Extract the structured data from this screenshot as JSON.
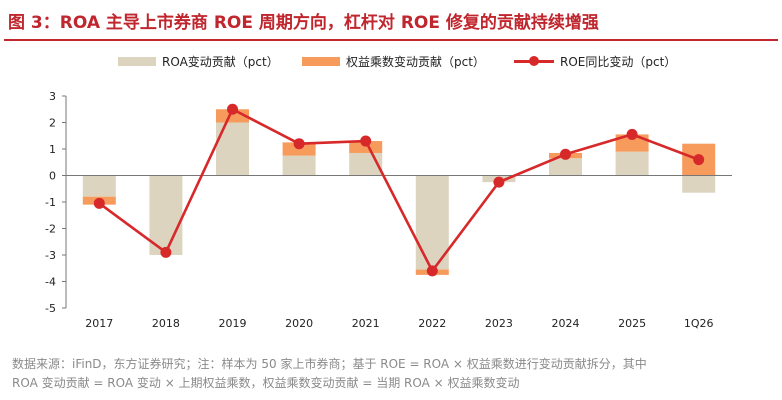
{
  "title": "图 3：ROA 主导上市券商 ROE 周期方向，杠杆对 ROE 修复的贡献持续增强",
  "legend": [
    {
      "label": "ROA变动贡献（pct）",
      "color": "#ddd4c0",
      "kind": "bar"
    },
    {
      "label": "权益乘数变动贡献（pct）",
      "color": "#f79b5c",
      "kind": "bar"
    },
    {
      "label": "ROE同比变动（pct）",
      "color": "#d7282a",
      "kind": "line"
    }
  ],
  "source_lines": [
    "数据来源：iFinD，东方证券研究；注：样本为 50 家上市券商；基于 ROE = ROA × 权益乘数进行变动贡献拆分，其中",
    "ROA 变动贡献 = ROA 变动 × 上期权益乘数，权益乘数变动贡献 = 当期 ROA × 权益乘数变动"
  ],
  "chart_data": {
    "type": "bar",
    "categories": [
      "2017",
      "2018",
      "2019",
      "2020",
      "2021",
      "2022",
      "2023",
      "2024",
      "2025",
      "1Q26"
    ],
    "series": [
      {
        "name": "ROA变动贡献（pct）",
        "type": "bar",
        "stack": true,
        "color": "#ddd4c0",
        "values": [
          -0.8,
          -3.0,
          2.0,
          0.75,
          0.85,
          -3.55,
          -0.25,
          0.65,
          0.9,
          -0.65
        ]
      },
      {
        "name": "权益乘数变动贡献（pct）",
        "type": "bar",
        "stack": true,
        "color": "#f79b5c",
        "values": [
          -0.3,
          0.0,
          0.5,
          0.5,
          0.45,
          -0.2,
          0.0,
          0.2,
          0.65,
          1.2
        ]
      },
      {
        "name": "ROE同比变动（pct）",
        "type": "line",
        "color": "#d7282a",
        "values": [
          -1.05,
          -2.9,
          2.5,
          1.2,
          1.3,
          -3.6,
          -0.25,
          0.8,
          1.55,
          0.6
        ]
      }
    ],
    "ylim": [
      -5,
      3
    ],
    "yticks": [
      "3",
      "2",
      "1",
      "0",
      "-1",
      "-2",
      "-3",
      "-4",
      "-5"
    ],
    "xlabel": "",
    "ylabel": "",
    "grid": false,
    "legend_position": "top"
  }
}
